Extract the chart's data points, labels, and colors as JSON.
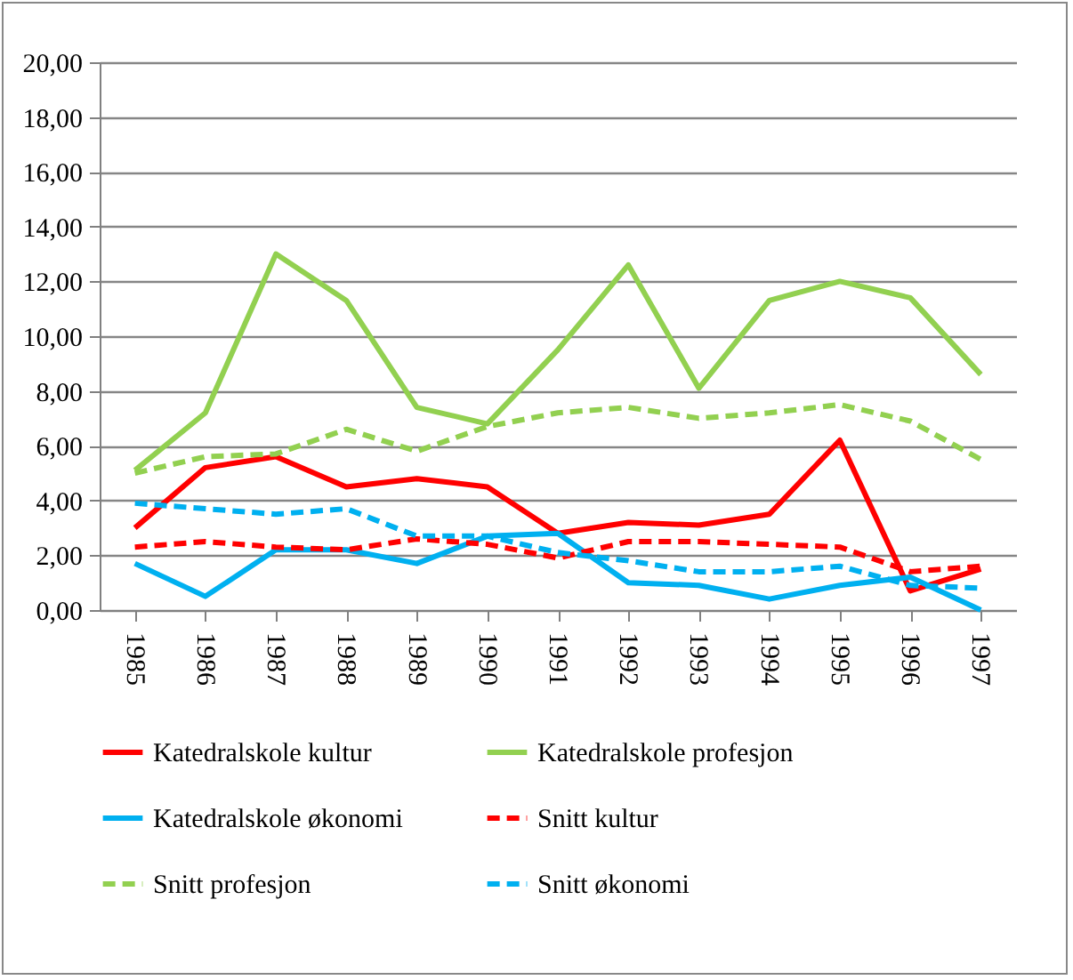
{
  "chart_data": {
    "type": "line",
    "categories": [
      "1985",
      "1986",
      "1987",
      "1988",
      "1989",
      "1990",
      "1991",
      "1992",
      "1993",
      "1994",
      "1995",
      "1996",
      "1997"
    ],
    "ylim": [
      0,
      20
    ],
    "yticks": [
      {
        "value": 0,
        "label": "0,00"
      },
      {
        "value": 2,
        "label": "2,00"
      },
      {
        "value": 4,
        "label": "4,00"
      },
      {
        "value": 6,
        "label": "6,00"
      },
      {
        "value": 8,
        "label": "8,00"
      },
      {
        "value": 10,
        "label": "10,00"
      },
      {
        "value": 12,
        "label": "12,00"
      },
      {
        "value": 14,
        "label": "14,00"
      },
      {
        "value": 16,
        "label": "16,00"
      },
      {
        "value": 18,
        "label": "18,00"
      },
      {
        "value": 20,
        "label": "20,00"
      }
    ],
    "grid": "y",
    "legend": "bottom",
    "series": [
      {
        "name": "Katedralskole kultur",
        "color": "#ff0000",
        "line_style": "solid",
        "values": [
          3.0,
          5.2,
          5.6,
          4.5,
          4.8,
          4.5,
          2.8,
          3.2,
          3.1,
          3.5,
          6.2,
          0.7,
          1.5
        ]
      },
      {
        "name": "Katedralskole profesjon",
        "color": "#92d050",
        "line_style": "solid",
        "values": [
          5.1,
          7.2,
          13.0,
          11.3,
          7.4,
          6.8,
          9.5,
          12.6,
          8.1,
          11.3,
          12.0,
          11.4,
          8.6
        ]
      },
      {
        "name": "Katedralskole økonomi",
        "color": "#00b0f0",
        "line_style": "solid",
        "values": [
          1.7,
          0.5,
          2.2,
          2.2,
          1.7,
          2.7,
          2.8,
          1.0,
          0.9,
          0.4,
          0.9,
          1.2,
          0.0
        ]
      },
      {
        "name": "Snitt kultur",
        "color": "#ff0000",
        "line_style": "dashed",
        "values": [
          2.3,
          2.5,
          2.3,
          2.2,
          2.6,
          2.4,
          1.9,
          2.5,
          2.5,
          2.4,
          2.3,
          1.4,
          1.6
        ]
      },
      {
        "name": "Snitt profesjon",
        "color": "#92d050",
        "line_style": "dashed",
        "values": [
          5.0,
          5.6,
          5.7,
          6.6,
          5.8,
          6.7,
          7.2,
          7.4,
          7.0,
          7.2,
          7.5,
          6.9,
          5.5
        ]
      },
      {
        "name": "Snitt økonomi",
        "color": "#00b0f0",
        "line_style": "dashed",
        "values": [
          3.9,
          3.7,
          3.5,
          3.7,
          2.7,
          2.7,
          2.1,
          1.8,
          1.4,
          1.4,
          1.6,
          0.9,
          0.8
        ]
      }
    ]
  }
}
